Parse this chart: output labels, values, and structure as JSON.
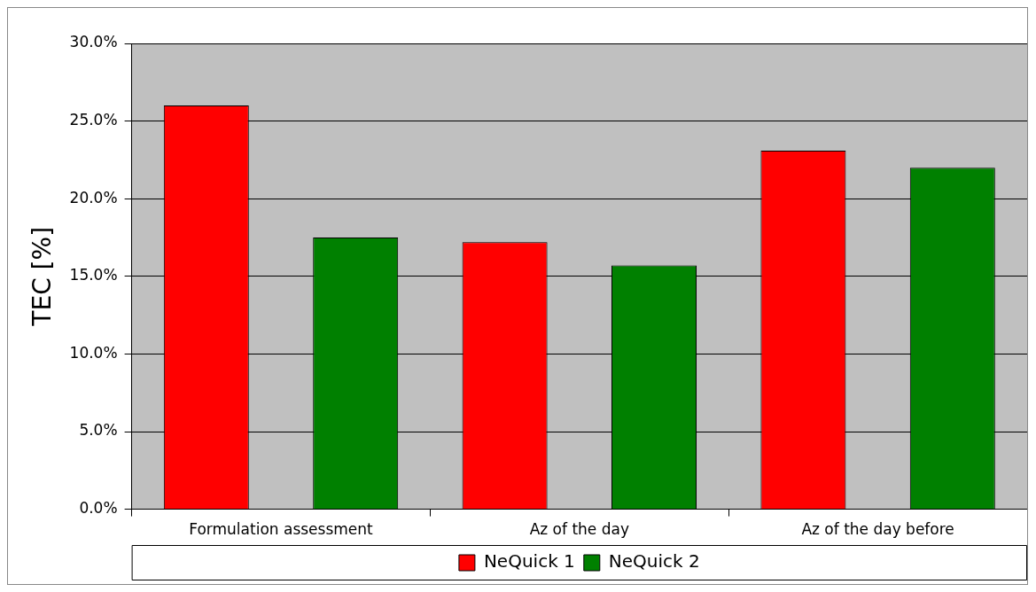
{
  "chart_data": {
    "type": "bar",
    "ylabel": "TEC [%]",
    "categories": [
      "Formulation assessment",
      "Az of the day",
      "Az of the day before"
    ],
    "series": [
      {
        "name": "NeQuick 1",
        "color": "#ff0000",
        "values": [
          26.0,
          17.2,
          23.1
        ]
      },
      {
        "name": "NeQuick 2",
        "color": "#008000",
        "values": [
          17.5,
          15.7,
          22.0
        ]
      }
    ],
    "ylim": [
      0,
      30
    ],
    "yticks": [
      {
        "value": 0,
        "label": "0.0%"
      },
      {
        "value": 5,
        "label": "5.0%"
      },
      {
        "value": 10,
        "label": "10.0%"
      },
      {
        "value": 15,
        "label": "15.0%"
      },
      {
        "value": 20,
        "label": "20.0%"
      },
      {
        "value": 25,
        "label": "25.0%"
      },
      {
        "value": 30,
        "label": "30.0%"
      }
    ],
    "grid": "y",
    "legend": "bottom"
  }
}
